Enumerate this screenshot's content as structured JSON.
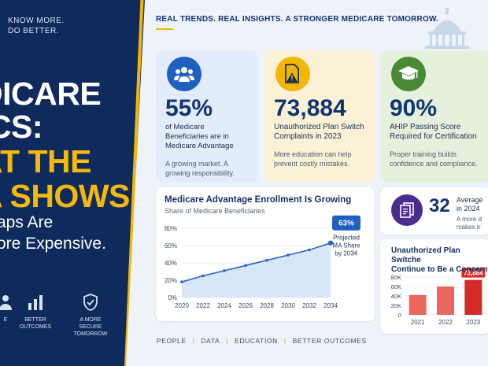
{
  "left_panel": {
    "tagline": "KNOW MORE.\nDO BETTER.",
    "headline_lines": [
      "DICARE",
      "ICS:",
      "AT THE",
      "A SHOWS"
    ],
    "subhead_lines": [
      "aps Are",
      "ore Expensive."
    ],
    "icons": [
      {
        "icon": "people-icon",
        "label": "E"
      },
      {
        "icon": "bar-chart-icon",
        "label": "BETTER\nOUTCOMES"
      },
      {
        "icon": "shield-check-icon",
        "label": "A MORE\nSECURE TOMORROW"
      }
    ]
  },
  "header": {
    "tagline": "REAL TRENDS. REAL INSIGHTS. A STRONGER MEDICARE TOMORROW."
  },
  "stat_cards": [
    {
      "icon": "people-icon",
      "value": "55%",
      "description": "of Medicare Beneficiaries are in Medicare Advantage",
      "note": "A growing market. A growing responsibility."
    },
    {
      "icon": "document-warning-icon",
      "value": "73,884",
      "description": "Unauthorized Plan Switch Complaints in 2023",
      "note": "More education can help prevent costly mistakes."
    },
    {
      "icon": "graduation-cap-icon",
      "value": "90%",
      "description": "AHIP Passing Score Required for Certification",
      "note": "Proper training builds confidence and compliance."
    }
  ],
  "mini_stat": {
    "icon": "documents-icon",
    "value": "32",
    "description": "Average\nin 2024",
    "note": "A more d\nmakes tr"
  },
  "colors": {
    "navy": "#0f2a5c",
    "gold": "#f2b705",
    "line_blue": "#2a64c4",
    "bar_red": "#e9675f",
    "bar_red_dark": "#d52b25"
  },
  "chart_data": [
    {
      "type": "line",
      "title": "Medicare Advantage Enrollment Is Growing",
      "subtitle": "Share of Medicare Beneficiaries",
      "x": [
        2020,
        2022,
        2024,
        2026,
        2028,
        2030,
        2032,
        2034
      ],
      "series": [
        {
          "values": [
            18,
            25,
            31,
            37,
            43,
            49,
            55,
            63
          ]
        }
      ],
      "y_ticks": [
        "0%",
        "20%",
        "40%",
        "60%",
        "80%"
      ],
      "ylim": [
        0,
        80
      ],
      "annotation": {
        "value_label": "63%",
        "text": "Projected\nMA Share\nby 2034"
      },
      "grid": true
    },
    {
      "type": "bar",
      "title": "Unauthorized Plan Switche\nContinue to Be a Concern",
      "categories": [
        "2021",
        "2022",
        "2023"
      ],
      "values": [
        42000,
        60000,
        73884
      ],
      "y_ticks": [
        "80K",
        "60K",
        "40K",
        "20K",
        "0"
      ],
      "ylim": [
        0,
        80000
      ],
      "data_label": "73,884"
    }
  ],
  "footer": {
    "items": [
      "PEOPLE",
      "DATA",
      "EDUCATION",
      "BETTER OUTCOMES"
    ]
  }
}
